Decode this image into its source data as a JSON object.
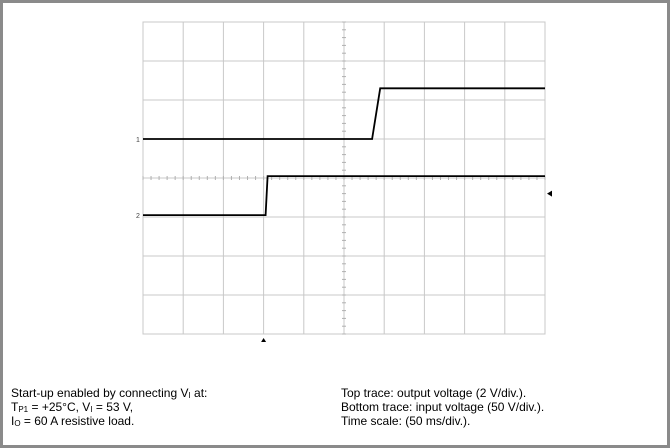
{
  "chart_data": {
    "type": "line",
    "title": "",
    "xlabel": "",
    "ylabel": "",
    "grid": true,
    "divisions": {
      "x": 10,
      "y": 8
    },
    "xlim": [
      0,
      10
    ],
    "ylim": [
      0,
      8
    ],
    "series": [
      {
        "x": [
          0,
          5.7,
          5.9,
          10
        ],
        "y": [
          5.0,
          5.0,
          6.3,
          6.3
        ]
      },
      {
        "x": [
          0,
          3.05,
          3.1,
          10
        ],
        "y": [
          3.05,
          3.05,
          4.05,
          4.05
        ]
      }
    ],
    "channel_markers": [
      "1",
      "2"
    ],
    "trigger_level_at_y": 3.6,
    "trigger_position_at_x": 3.0
  },
  "caption": {
    "left": {
      "line1": "Start-up enabled by connecting V",
      "line1_sub": "I",
      "line1_end": " at:",
      "line2_T": "T",
      "line2_T_sub": "P1",
      "line2_mid": " = +25°C,  V",
      "line2_V_sub": "I",
      "line2_end": " = 53 V,",
      "line3_I": "I",
      "line3_I_sub": "O",
      "line3_end": " = 60 A resistive load."
    },
    "right": {
      "line1": "Top trace: output voltage (2 V/div.).",
      "line2": "Bottom trace: input voltage (50 V/div.).",
      "line3": "Time scale: (50 ms/div.)."
    }
  },
  "colors": {
    "trace": "#000000",
    "grid": "#c8c8c8",
    "frame": "#8a8a8a"
  }
}
